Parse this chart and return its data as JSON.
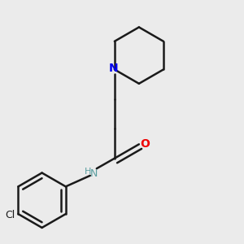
{
  "background_color": "#ebebeb",
  "bond_color": "#1a1a1a",
  "bond_width": 1.8,
  "atom_colors": {
    "N_pip": "#0000ee",
    "N_amide": "#5a9ea0",
    "H_amide": "#5a9ea0",
    "O": "#ee0000",
    "Cl": "#1a1a1a"
  },
  "font_size_N": 10,
  "font_size_NH": 9,
  "font_size_O": 10,
  "font_size_Cl": 9,
  "figsize": [
    3.0,
    3.0
  ],
  "dpi": 100,
  "xlim": [
    0.05,
    0.95
  ],
  "ylim": [
    0.05,
    0.98
  ]
}
